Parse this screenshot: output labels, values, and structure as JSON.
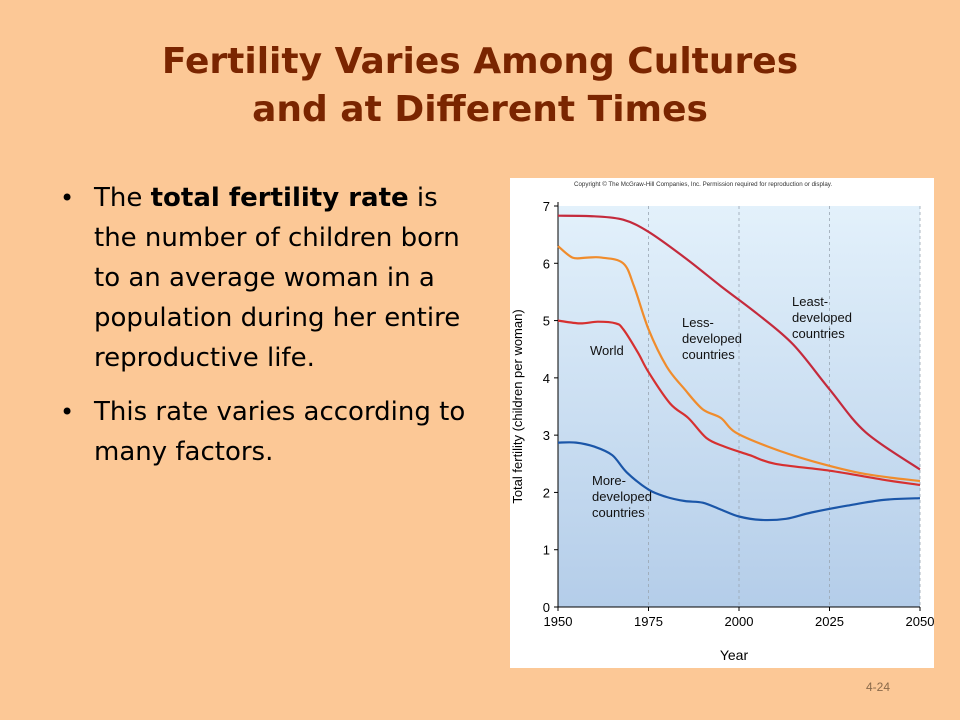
{
  "slide": {
    "title_line1": "Fertility Varies Among Cultures",
    "title_line2": "and at Different Times",
    "bullets": [
      {
        "pre": "The ",
        "bold": "total fertility rate",
        "post": " is the number of children born to an average woman in a population during her entire reproductive life."
      },
      {
        "pre": "This rate varies according to many factors.",
        "bold": "",
        "post": ""
      }
    ],
    "page_number": "4-24",
    "colors": {
      "background": "#fcc896",
      "title": "#7a2500",
      "plot_top": "#e3f1fb",
      "plot_bottom": "#b4cde9"
    }
  },
  "chart_data": {
    "type": "line",
    "copyright": "Copyright © The McGraw-Hill Companies, Inc. Permission required for reproduction or display.",
    "xlabel": "Year",
    "ylabel": "Total fertility (children per woman)",
    "xlim": [
      1950,
      2050
    ],
    "ylim": [
      0,
      7
    ],
    "xticks": [
      1950,
      1975,
      2000,
      2025,
      2050
    ],
    "yticks": [
      0,
      1,
      2,
      3,
      4,
      5,
      6,
      7
    ],
    "grid": "vertical",
    "series": [
      {
        "name": "Least-developed countries",
        "label_lines": [
          "Least-",
          "developed",
          "countries"
        ],
        "color": "#c42a3c",
        "points": [
          [
            1950,
            6.83
          ],
          [
            1960,
            6.82
          ],
          [
            1968,
            6.76
          ],
          [
            1975,
            6.55
          ],
          [
            1985,
            6.1
          ],
          [
            1995,
            5.6
          ],
          [
            2005,
            5.12
          ],
          [
            2015,
            4.58
          ],
          [
            2025,
            3.8
          ],
          [
            2035,
            3.05
          ],
          [
            2050,
            2.4
          ]
        ]
      },
      {
        "name": "Less-developed countries",
        "label_lines": [
          "Less-",
          "developed",
          "countries"
        ],
        "color": "#f08c2c",
        "points": [
          [
            1950,
            6.3
          ],
          [
            1954,
            6.1
          ],
          [
            1958,
            6.1
          ],
          [
            1962,
            6.1
          ],
          [
            1968,
            6.0
          ],
          [
            1971,
            5.6
          ],
          [
            1975,
            4.85
          ],
          [
            1980,
            4.2
          ],
          [
            1985,
            3.8
          ],
          [
            1990,
            3.45
          ],
          [
            1995,
            3.3
          ],
          [
            1999,
            3.05
          ],
          [
            2008,
            2.8
          ],
          [
            2020,
            2.55
          ],
          [
            2035,
            2.32
          ],
          [
            2050,
            2.2
          ]
        ]
      },
      {
        "name": "World",
        "label_lines": [
          "World"
        ],
        "color": "#d63030",
        "points": [
          [
            1950,
            5.0
          ],
          [
            1956,
            4.95
          ],
          [
            1961,
            4.98
          ],
          [
            1966,
            4.95
          ],
          [
            1968,
            4.85
          ],
          [
            1972,
            4.45
          ],
          [
            1975,
            4.1
          ],
          [
            1981,
            3.55
          ],
          [
            1986,
            3.3
          ],
          [
            1991,
            2.95
          ],
          [
            1996,
            2.8
          ],
          [
            2003,
            2.65
          ],
          [
            2010,
            2.5
          ],
          [
            2025,
            2.38
          ],
          [
            2040,
            2.22
          ],
          [
            2050,
            2.13
          ]
        ]
      },
      {
        "name": "More-developed countries",
        "label_lines": [
          "More-",
          "developed",
          "countries"
        ],
        "color": "#1b56a8",
        "points": [
          [
            1950,
            2.87
          ],
          [
            1955,
            2.87
          ],
          [
            1960,
            2.8
          ],
          [
            1965,
            2.65
          ],
          [
            1969,
            2.35
          ],
          [
            1975,
            2.05
          ],
          [
            1980,
            1.92
          ],
          [
            1985,
            1.85
          ],
          [
            1990,
            1.82
          ],
          [
            1995,
            1.7
          ],
          [
            2000,
            1.58
          ],
          [
            2006,
            1.52
          ],
          [
            2013,
            1.54
          ],
          [
            2020,
            1.65
          ],
          [
            2030,
            1.77
          ],
          [
            2040,
            1.87
          ],
          [
            2050,
            1.9
          ]
        ]
      }
    ]
  }
}
